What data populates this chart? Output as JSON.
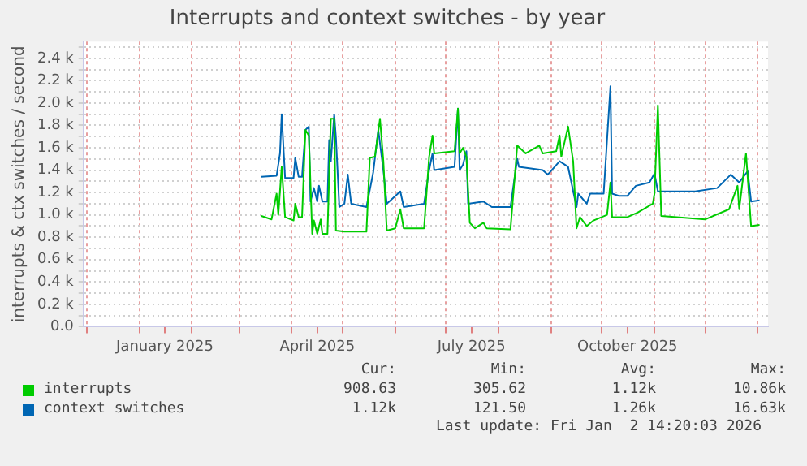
{
  "chart_data": {
    "type": "line",
    "title": "Interrupts and context switches - by year",
    "ylabel": "interrupts & ctx switches / second",
    "xlim": [
      "2024-11-29",
      "2026-01-07"
    ],
    "xticks": [
      {
        "value": "2024-12-01",
        "label": null
      },
      {
        "value": "2025-01-01",
        "label": null
      },
      {
        "value": "2025-01-16",
        "label": "January 2025"
      },
      {
        "value": "2025-02-01",
        "label": null
      },
      {
        "value": "2025-03-01",
        "label": null
      },
      {
        "value": "2025-04-01",
        "label": null
      },
      {
        "value": "2025-04-16",
        "label": "April 2025"
      },
      {
        "value": "2025-05-01",
        "label": null
      },
      {
        "value": "2025-06-01",
        "label": null
      },
      {
        "value": "2025-07-01",
        "label": null
      },
      {
        "value": "2025-07-16",
        "label": "July 2025"
      },
      {
        "value": "2025-08-01",
        "label": null
      },
      {
        "value": "2025-09-01",
        "label": null
      },
      {
        "value": "2025-10-01",
        "label": null
      },
      {
        "value": "2025-10-16",
        "label": "October 2025"
      },
      {
        "value": "2025-11-01",
        "label": null
      },
      {
        "value": "2025-12-01",
        "label": null
      },
      {
        "value": "2026-01-01",
        "label": null
      }
    ],
    "ylim": [
      0,
      2550
    ],
    "yticks": [
      {
        "value": 0,
        "label": "0.0"
      },
      {
        "value": 100,
        "label": null
      },
      {
        "value": 200,
        "label": "0.2 k"
      },
      {
        "value": 300,
        "label": null
      },
      {
        "value": 400,
        "label": "0.4 k"
      },
      {
        "value": 500,
        "label": null
      },
      {
        "value": 600,
        "label": "0.6 k"
      },
      {
        "value": 700,
        "label": null
      },
      {
        "value": 800,
        "label": "0.8 k"
      },
      {
        "value": 900,
        "label": null
      },
      {
        "value": 1000,
        "label": "1.0 k"
      },
      {
        "value": 1100,
        "label": null
      },
      {
        "value": 1200,
        "label": "1.2 k"
      },
      {
        "value": 1300,
        "label": null
      },
      {
        "value": 1400,
        "label": "1.4 k"
      },
      {
        "value": 1500,
        "label": null
      },
      {
        "value": 1600,
        "label": "1.6 k"
      },
      {
        "value": 1700,
        "label": null
      },
      {
        "value": 1800,
        "label": "1.8 k"
      },
      {
        "value": 1900,
        "label": null
      },
      {
        "value": 2000,
        "label": "2.0 k"
      },
      {
        "value": 2100,
        "label": null
      },
      {
        "value": 2200,
        "label": "2.2 k"
      },
      {
        "value": 2300,
        "label": null
      },
      {
        "value": 2400,
        "label": "2.4 k"
      },
      {
        "value": 2500,
        "label": null
      }
    ],
    "grid": true,
    "legend": "bottom",
    "marker": "none",
    "line_style": "solid",
    "annotations": [
      "Cur:",
      "Min:",
      "Avg:",
      "Max:",
      "908.63",
      "305.62",
      "1.12k",
      "10.86k",
      "1.12k",
      "121.50",
      "1.26k",
      "16.63k",
      "Last update: Fri Jan  2 14:20:03 2026"
    ],
    "series": [
      {
        "name": "interrupts",
        "color": "#00cc00",
        "x": [
          "2025-03-14",
          "2025-03-20",
          "2025-03-23",
          "2025-03-24",
          "2025-03-26",
          "2025-03-28",
          "2025-04-02",
          "2025-04-03",
          "2025-04-05",
          "2025-04-07",
          "2025-04-09",
          "2025-04-11",
          "2025-04-13",
          "2025-04-14",
          "2025-04-16",
          "2025-04-18",
          "2025-04-19",
          "2025-04-22",
          "2025-04-24",
          "2025-04-26",
          "2025-04-27",
          "2025-05-02",
          "2025-05-15",
          "2025-05-17",
          "2025-05-20",
          "2025-05-23",
          "2025-05-25",
          "2025-05-27",
          "2025-06-01",
          "2025-06-04",
          "2025-06-06",
          "2025-06-18",
          "2025-06-21",
          "2025-06-23",
          "2025-06-24",
          "2025-07-06",
          "2025-07-08",
          "2025-07-09",
          "2025-07-11",
          "2025-07-13",
          "2025-07-15",
          "2025-07-18",
          "2025-07-23",
          "2025-07-25",
          "2025-08-08",
          "2025-08-12",
          "2025-08-17",
          "2025-08-25",
          "2025-08-27",
          "2025-09-04",
          "2025-09-06",
          "2025-09-07",
          "2025-09-11",
          "2025-09-14",
          "2025-09-16",
          "2025-09-18",
          "2025-09-22",
          "2025-09-26",
          "2025-10-04",
          "2025-10-06",
          "2025-10-07",
          "2025-10-16",
          "2025-10-22",
          "2025-10-31",
          "2025-11-01",
          "2025-11-03",
          "2025-11-05",
          "2025-12-01",
          "2025-12-15",
          "2025-12-20",
          "2025-12-21",
          "2025-12-25",
          "2025-12-28",
          "2026-01-02"
        ],
        "values": [
          990,
          960,
          1190,
          1000,
          1430,
          980,
          950,
          1100,
          980,
          980,
          1760,
          1710,
          830,
          950,
          830,
          960,
          830,
          830,
          1860,
          1860,
          860,
          850,
          850,
          1510,
          1520,
          1860,
          1480,
          860,
          880,
          1050,
          880,
          880,
          1520,
          1710,
          1550,
          1570,
          1950,
          1550,
          1600,
          1520,
          930,
          880,
          930,
          880,
          870,
          1620,
          1550,
          1620,
          1550,
          1570,
          1710,
          1520,
          1790,
          1480,
          880,
          980,
          900,
          950,
          1000,
          1290,
          980,
          980,
          1020,
          1100,
          1190,
          1980,
          990,
          960,
          1050,
          1260,
          1050,
          1550,
          900,
          910
        ]
      },
      {
        "name": "context switches",
        "color": "#0066b3",
        "x": [
          "2025-03-14",
          "2025-03-23",
          "2025-03-25",
          "2025-03-26",
          "2025-03-28",
          "2025-04-02",
          "2025-04-03",
          "2025-04-05",
          "2025-04-07",
          "2025-04-09",
          "2025-04-11",
          "2025-04-12",
          "2025-04-14",
          "2025-04-16",
          "2025-04-17",
          "2025-04-19",
          "2025-04-22",
          "2025-04-23",
          "2025-04-24",
          "2025-04-26",
          "2025-04-27",
          "2025-04-29",
          "2025-05-02",
          "2025-05-04",
          "2025-05-06",
          "2025-05-15",
          "2025-05-19",
          "2025-05-22",
          "2025-05-25",
          "2025-05-27",
          "2025-06-04",
          "2025-06-06",
          "2025-06-18",
          "2025-06-21",
          "2025-06-23",
          "2025-06-24",
          "2025-07-06",
          "2025-07-08",
          "2025-07-09",
          "2025-07-11",
          "2025-07-13",
          "2025-07-14",
          "2025-07-23",
          "2025-07-28",
          "2025-08-08",
          "2025-08-12",
          "2025-08-13",
          "2025-08-27",
          "2025-08-30",
          "2025-09-06",
          "2025-09-11",
          "2025-09-16",
          "2025-09-17",
          "2025-09-22",
          "2025-09-24",
          "2025-10-02",
          "2025-10-06",
          "2025-10-07",
          "2025-10-11",
          "2025-10-16",
          "2025-10-21",
          "2025-10-29",
          "2025-11-01",
          "2025-11-03",
          "2025-11-25",
          "2025-12-08",
          "2025-12-16",
          "2025-12-21",
          "2025-12-26",
          "2025-12-28",
          "2026-01-02"
        ],
        "values": [
          1340,
          1350,
          1550,
          1900,
          1330,
          1330,
          1510,
          1340,
          1340,
          1760,
          1790,
          1120,
          1240,
          1120,
          1260,
          1120,
          1120,
          1670,
          1480,
          1900,
          1690,
          1070,
          1100,
          1360,
          1100,
          1070,
          1380,
          1760,
          1400,
          1100,
          1210,
          1070,
          1100,
          1400,
          1550,
          1400,
          1430,
          1950,
          1400,
          1450,
          1570,
          1100,
          1120,
          1070,
          1070,
          1500,
          1430,
          1400,
          1360,
          1480,
          1430,
          1070,
          1190,
          1100,
          1190,
          1190,
          2150,
          1190,
          1170,
          1170,
          1260,
          1290,
          1370,
          1210,
          1210,
          1240,
          1360,
          1290,
          1390,
          1120,
          1130
        ]
      }
    ]
  }
}
